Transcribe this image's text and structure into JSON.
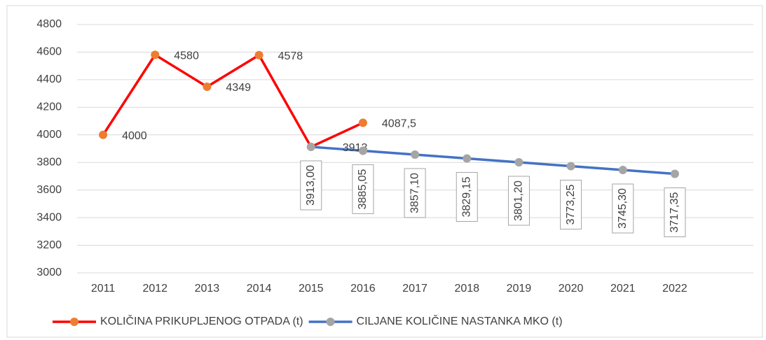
{
  "chart_data": {
    "type": "line",
    "categories": [
      "2011",
      "2012",
      "2013",
      "2014",
      "2015",
      "2016",
      "2017",
      "2018",
      "2019",
      "2020",
      "2021",
      "2022"
    ],
    "series": [
      {
        "name": "KOLIČINA PRIKUPLJENOG OTPADA (t)",
        "color": "#ff0000",
        "marker_color": "#ed7d31",
        "values": [
          4000,
          4580,
          4349,
          4578,
          3913,
          4087.5,
          null,
          null,
          null,
          null,
          null,
          null
        ],
        "value_labels": [
          "4000",
          "4580",
          "4349",
          "4578",
          "3913",
          "4087,5",
          null,
          null,
          null,
          null,
          null,
          null
        ]
      },
      {
        "name": "CILJANE KOLIČINE NASTANKA MKO (t)",
        "color": "#4472c4",
        "marker_color": "#a5a5a5",
        "values": [
          null,
          null,
          null,
          null,
          3913.0,
          3885.05,
          3857.1,
          3829.15,
          3801.2,
          3773.25,
          3745.3,
          3717.35
        ],
        "value_labels": [
          null,
          null,
          null,
          null,
          "3913,00",
          "3885,05",
          "3857,10",
          "3829,15",
          "3801,20",
          "3773,25",
          "3745,30",
          "3717,35"
        ]
      }
    ],
    "ylim": [
      3000,
      4800
    ],
    "yticks": [
      3000,
      3200,
      3400,
      3600,
      3800,
      4000,
      4200,
      4400,
      4600,
      4800
    ],
    "grid": true,
    "legend": "bottom"
  }
}
